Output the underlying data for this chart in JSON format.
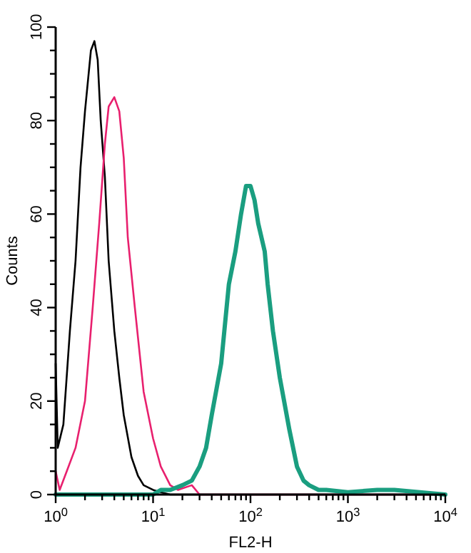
{
  "chart_data": {
    "type": "line",
    "xlabel": "FL2-H",
    "ylabel": "Counts",
    "log": "x",
    "xlim": [
      1,
      10000
    ],
    "ylim": [
      0,
      100
    ],
    "xticks": [
      {
        "value": 1,
        "label": "10$^{0}$"
      },
      {
        "value": 2,
        "label": null
      },
      {
        "value": 3,
        "label": null
      },
      {
        "value": 4,
        "label": null
      },
      {
        "value": 5,
        "label": null
      },
      {
        "value": 6,
        "label": null
      },
      {
        "value": 7,
        "label": null
      },
      {
        "value": 8,
        "label": null
      },
      {
        "value": 9,
        "label": null
      },
      {
        "value": 10,
        "label": "10$^{1}$"
      },
      {
        "value": 20,
        "label": null
      },
      {
        "value": 30,
        "label": null
      },
      {
        "value": 40,
        "label": null
      },
      {
        "value": 50,
        "label": null
      },
      {
        "value": 60,
        "label": null
      },
      {
        "value": 70,
        "label": null
      },
      {
        "value": 80,
        "label": null
      },
      {
        "value": 90,
        "label": null
      },
      {
        "value": 100,
        "label": "10$^{2}$"
      },
      {
        "value": 200,
        "label": null
      },
      {
        "value": 300,
        "label": null
      },
      {
        "value": 400,
        "label": null
      },
      {
        "value": 500,
        "label": null
      },
      {
        "value": 600,
        "label": null
      },
      {
        "value": 700,
        "label": null
      },
      {
        "value": 800,
        "label": null
      },
      {
        "value": 900,
        "label": null
      },
      {
        "value": 1000,
        "label": "10$^{3}$"
      },
      {
        "value": 2000,
        "label": null
      },
      {
        "value": 3000,
        "label": null
      },
      {
        "value": 4000,
        "label": null
      },
      {
        "value": 5000,
        "label": null
      },
      {
        "value": 6000,
        "label": null
      },
      {
        "value": 7000,
        "label": null
      },
      {
        "value": 8000,
        "label": null
      },
      {
        "value": 9000,
        "label": null
      },
      {
        "value": 10000,
        "label": "10$^{4}$"
      }
    ],
    "yticks": [
      0,
      {
        "value": 5,
        "label": null
      },
      {
        "value": 10,
        "label": null
      },
      {
        "value": 15,
        "label": null
      },
      20,
      {
        "value": 25,
        "label": null
      },
      {
        "value": 30,
        "label": null
      },
      {
        "value": 35,
        "label": null
      },
      40,
      {
        "value": 45,
        "label": null
      },
      {
        "value": 50,
        "label": null
      },
      {
        "value": 55,
        "label": null
      },
      60,
      {
        "value": 65,
        "label": null
      },
      {
        "value": 70,
        "label": null
      },
      {
        "value": 75,
        "label": null
      },
      80,
      {
        "value": 85,
        "label": null
      },
      {
        "value": 90,
        "label": null
      },
      {
        "value": 95,
        "label": null
      },
      100
    ],
    "grid": false,
    "marker": "none",
    "line_style": "solid",
    "series": [
      {
        "color": "#000000",
        "x": [
          1,
          1.05,
          1.2,
          1.4,
          1.6,
          1.8,
          2,
          2.3,
          2.5,
          2.7,
          2.9,
          3.2,
          3.5,
          4,
          4.5,
          5,
          6,
          7,
          8,
          10,
          12,
          15,
          10000
        ],
        "values": [
          28,
          10,
          15,
          35,
          50,
          70,
          82,
          95,
          97,
          93,
          80,
          68,
          50,
          35,
          25,
          17,
          8,
          4,
          2,
          1,
          0.5,
          0,
          0
        ]
      },
      {
        "color": "#e8206e",
        "x": [
          1,
          1.1,
          1.3,
          1.6,
          2,
          2.4,
          2.8,
          3.2,
          3.5,
          4,
          4.5,
          5,
          5.5,
          6.5,
          8,
          10,
          12,
          15,
          18,
          25,
          30,
          10000
        ],
        "values": [
          5,
          1,
          5,
          10,
          20,
          40,
          58,
          75,
          83,
          85,
          82,
          72,
          55,
          40,
          22,
          12,
          6,
          2,
          1,
          2,
          0,
          0
        ]
      },
      {
        "color": "#1a9e80",
        "x": [
          1,
          10,
          12,
          15,
          20,
          25,
          30,
          35,
          40,
          50,
          60,
          70,
          80,
          90,
          100,
          110,
          120,
          140,
          150,
          170,
          200,
          250,
          300,
          350,
          400,
          500,
          600,
          1000,
          2000,
          3000,
          10000
        ],
        "values": [
          0,
          0,
          1,
          1,
          2,
          3,
          6,
          10,
          17,
          28,
          45,
          52,
          60,
          66,
          66,
          63,
          58,
          52,
          45,
          35,
          25,
          14,
          6,
          3,
          2,
          1,
          1,
          0.5,
          1,
          1,
          0
        ]
      }
    ]
  }
}
